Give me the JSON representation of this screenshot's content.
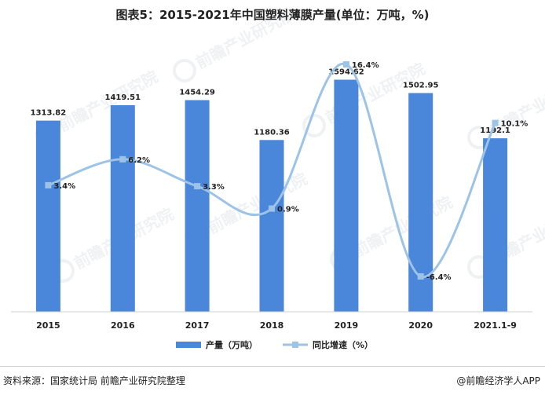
{
  "title": "图表5：2015-2021年中国塑料薄膜产量(单位：万吨，%)",
  "chart_data": {
    "type": "bar",
    "title": "图表5：2015-2021年中国塑料薄膜产量(单位：万吨，%)",
    "categories": [
      "2015",
      "2016",
      "2017",
      "2018",
      "2019",
      "2020",
      "2021.1-9"
    ],
    "series": [
      {
        "name": "产量（万吨）",
        "type": "bar",
        "values": [
          1313.82,
          1419.51,
          1454.29,
          1180.36,
          1594.62,
          1502.95,
          1192.1
        ],
        "labels": [
          "1313.82",
          "1419.51",
          "1454.29",
          "1180.36",
          "1594.62",
          "1502.95",
          "1192.1"
        ],
        "color": "#4a86d9"
      },
      {
        "name": "同比增速（%）",
        "type": "line",
        "values": [
          3.4,
          6.2,
          3.3,
          0.9,
          16.4,
          -6.4,
          10.1
        ],
        "labels": [
          "3.4%",
          "6.2%",
          "3.3%",
          "0.9%",
          "16.4%",
          "-6.4%",
          "10.1%"
        ],
        "color": "#9dc3e6"
      }
    ],
    "ylim_bar": [
      0,
      1750
    ],
    "ylim_line": [
      -8,
      17
    ],
    "grid": false,
    "legend": "bottom"
  },
  "legend": {
    "bar_label": "产量（万吨）",
    "line_label": "同比增速（%）"
  },
  "footer": {
    "source": "资料来源：国家统计局 前瞻产业研究院整理",
    "brand": "@前瞻经济学人APP"
  },
  "watermark": "前瞻产业研究院"
}
